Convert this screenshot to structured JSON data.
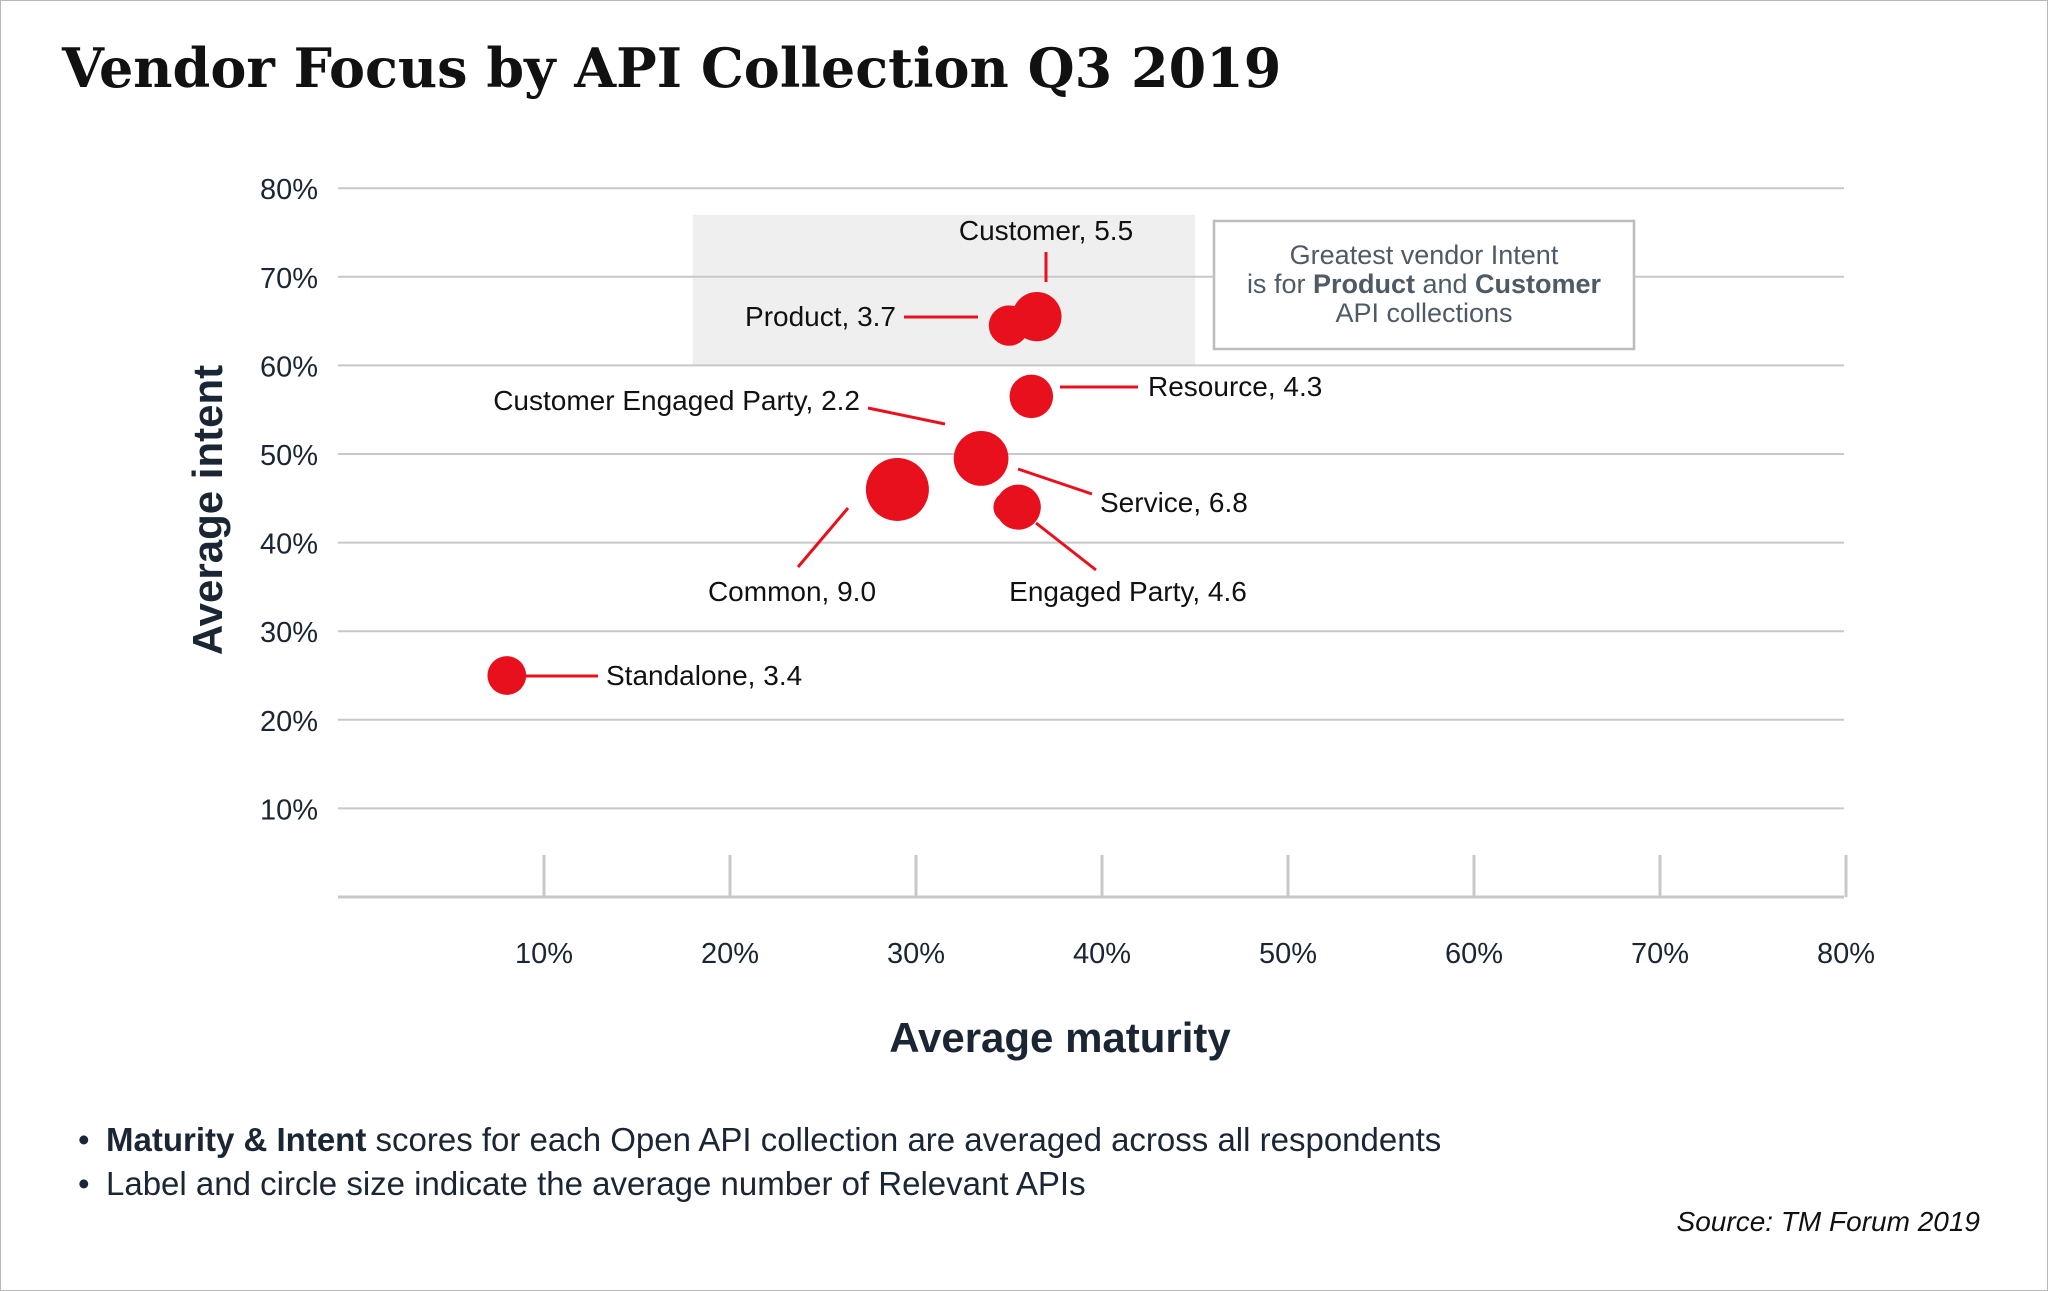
{
  "chart_data": {
    "type": "scatter",
    "title": "Vendor Focus by API Collection Q3 2019",
    "xlabel": "Average maturity",
    "ylabel": "Average intent",
    "xlim": [
      0,
      80
    ],
    "ylim": [
      0,
      80
    ],
    "x_ticks": [
      "10%",
      "20%",
      "30%",
      "40%",
      "50%",
      "60%",
      "70%",
      "80%"
    ],
    "y_ticks": [
      "10%",
      "20%",
      "30%",
      "40%",
      "50%",
      "60%",
      "70%",
      "80%"
    ],
    "grid": true,
    "points": [
      {
        "name": "Customer",
        "x": 36.5,
        "y": 65.5,
        "size": 5.5,
        "label": "Customer, 5.5"
      },
      {
        "name": "Product",
        "x": 35.0,
        "y": 64.5,
        "size": 3.7,
        "label": "Product, 3.7"
      },
      {
        "name": "Resource",
        "x": 36.2,
        "y": 56.5,
        "size": 4.3,
        "label": "Resource, 4.3"
      },
      {
        "name": "Customer Engaged Party",
        "x": 33.5,
        "y": 49.5,
        "size": 2.2,
        "label": "Customer Engaged Party, 2.2"
      },
      {
        "name": "Common",
        "x": 29.0,
        "y": 46.0,
        "size": 9.0,
        "label": "Common, 9.0"
      },
      {
        "name": "Service",
        "x": 35.5,
        "y": 44.0,
        "size": 6.8,
        "label": "Service, 6.8"
      },
      {
        "name": "Engaged Party",
        "x": 35.5,
        "y": 44.0,
        "size": 4.6,
        "label": "Engaged Party, 4.6"
      },
      {
        "name": "Standalone",
        "x": 8.0,
        "y": 25.0,
        "size": 3.4,
        "label": "Standalone, 3.4"
      }
    ],
    "highlight": {
      "x_range": [
        18,
        45
      ],
      "y_range": [
        60,
        77
      ],
      "callout_lines": [
        "Greatest vendor Intent",
        "is for ",
        "Product",
        " and ",
        "Customer",
        "API collections"
      ]
    }
  },
  "colors": {
    "bubble": "#e8101d",
    "grid": "#c8c8c8",
    "highlight": "#efefef",
    "text": "#1b2634"
  },
  "notes": {
    "line1_bold": "Maturity & Intent",
    "line1_rest": " scores for each Open API collection are averaged across all respondents",
    "line2": "Label and circle size indicate the average number of Relevant APIs",
    "bullet": "•"
  },
  "source": "Source: TM Forum 2019"
}
